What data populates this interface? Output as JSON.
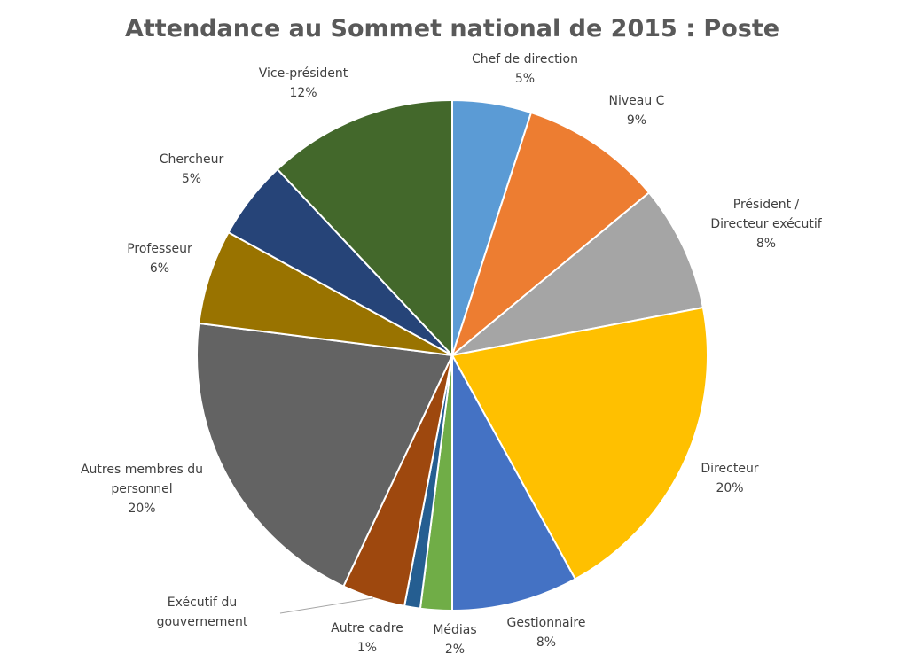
{
  "chart_data": {
    "type": "pie",
    "title": "Attendance au Sommet national de 2015 : Poste",
    "slices": [
      {
        "name": "Chef de direction",
        "lines": [
          "Chef de direction"
        ],
        "value": 5,
        "label": "5%",
        "color": "#5B9BD5"
      },
      {
        "name": "Niveau C",
        "lines": [
          "Niveau C"
        ],
        "value": 9,
        "label": "9%",
        "color": "#ED7D31"
      },
      {
        "name": "Président / Directeur exécutif",
        "lines": [
          "Président /",
          "Directeur exécutif"
        ],
        "value": 8,
        "label": "8%",
        "color": "#A5A5A5"
      },
      {
        "name": "Directeur",
        "lines": [
          "Directeur"
        ],
        "value": 20,
        "label": "20%",
        "color": "#FFC000"
      },
      {
        "name": "Gestionnaire",
        "lines": [
          "Gestionnaire"
        ],
        "value": 8,
        "label": "8%",
        "color": "#4472C4"
      },
      {
        "name": "Médias",
        "lines": [
          "Médias"
        ],
        "value": 2,
        "label": "2%",
        "color": "#70AD47"
      },
      {
        "name": "Autre cadre",
        "lines": [
          "Autre cadre"
        ],
        "value": 1,
        "label": "1%",
        "color": "#255E91"
      },
      {
        "name": "Exécutif du gouvernement",
        "lines": [
          "Exécutif du",
          "gouvernement"
        ],
        "value": 4,
        "label": "",
        "color": "#9E480E"
      },
      {
        "name": "Autres membres du personnel",
        "lines": [
          "Autres membres du",
          "personnel"
        ],
        "value": 20,
        "label": "20%",
        "color": "#636363"
      },
      {
        "name": "Professeur",
        "lines": [
          "Professeur"
        ],
        "value": 6,
        "label": "6%",
        "color": "#997300"
      },
      {
        "name": "Chercheur",
        "lines": [
          "Chercheur"
        ],
        "value": 5,
        "label": "5%",
        "color": "#264478"
      },
      {
        "name": "Vice-président",
        "lines": [
          "Vice-président"
        ],
        "value": 12,
        "label": "12%",
        "color": "#43682B"
      }
    ]
  }
}
